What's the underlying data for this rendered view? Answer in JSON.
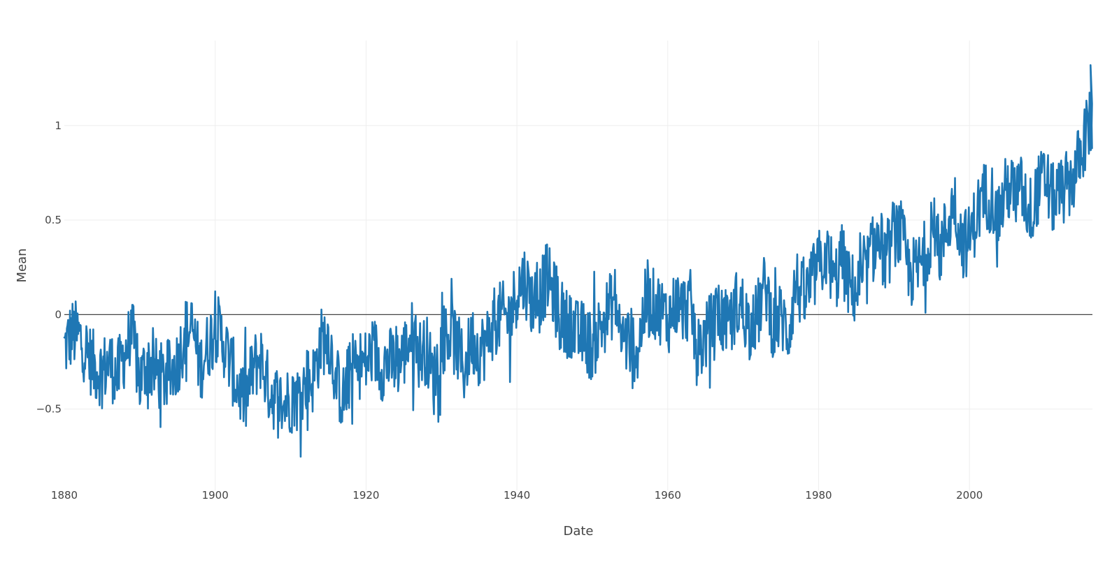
{
  "chart_data": {
    "type": "line",
    "title": "",
    "xlabel": "Date",
    "ylabel": "Mean",
    "x_ticks": [
      "1880",
      "1900",
      "1920",
      "1940",
      "1960",
      "1980",
      "2000"
    ],
    "y_ticks": [
      "−0.5",
      "0",
      "0.5",
      "1"
    ],
    "xlim": [
      1880,
      2016.3
    ],
    "ylim": [
      -0.93,
      1.45
    ],
    "grid": true,
    "zero_line": true,
    "colors": {
      "series": "#1f77b4",
      "grid": "#eeeeee",
      "zero_line": "#444444"
    },
    "series": [
      {
        "x": [
          1880.0,
          1881.0,
          1882.0,
          1883.0,
          1884.0,
          1885.0,
          1886.0,
          1887.0,
          1888.0,
          1889.0,
          1890.0,
          1891.0,
          1892.0,
          1893.0,
          1894.0,
          1895.0,
          1896.0,
          1897.0,
          1898.0,
          1899.0,
          1900.0,
          1901.0,
          1902.0,
          1903.0,
          1904.0,
          1905.0,
          1906.0,
          1907.0,
          1908.0,
          1909.0,
          1910.0,
          1911.0,
          1912.0,
          1913.0,
          1914.0,
          1915.0,
          1916.0,
          1917.0,
          1918.0,
          1919.0,
          1920.0,
          1921.0,
          1922.0,
          1923.0,
          1924.0,
          1925.0,
          1926.0,
          1927.0,
          1928.0,
          1929.0,
          1930.0,
          1931.0,
          1932.0,
          1933.0,
          1934.0,
          1935.0,
          1936.0,
          1937.0,
          1938.0,
          1939.0,
          1940.0,
          1941.0,
          1942.0,
          1943.0,
          1944.0,
          1945.0,
          1946.0,
          1947.0,
          1948.0,
          1949.0,
          1950.0,
          1951.0,
          1952.0,
          1953.0,
          1954.0,
          1955.0,
          1956.0,
          1957.0,
          1958.0,
          1959.0,
          1960.0,
          1961.0,
          1962.0,
          1963.0,
          1964.0,
          1965.0,
          1966.0,
          1967.0,
          1968.0,
          1969.0,
          1970.0,
          1971.0,
          1972.0,
          1973.0,
          1974.0,
          1975.0,
          1976.0,
          1977.0,
          1978.0,
          1979.0,
          1980.0,
          1981.0,
          1982.0,
          1983.0,
          1984.0,
          1985.0,
          1986.0,
          1987.0,
          1988.0,
          1989.0,
          1990.0,
          1991.0,
          1992.0,
          1993.0,
          1994.0,
          1995.0,
          1996.0,
          1997.0,
          1998.0,
          1999.0,
          2000.0,
          2001.0,
          2002.0,
          2003.0,
          2004.0,
          2005.0,
          2006.0,
          2007.0,
          2008.0,
          2009.0,
          2010.0,
          2011.0,
          2012.0,
          2013.0,
          2014.0,
          2015.0,
          2016.0
        ],
        "y": [
          -0.18,
          -0.1,
          -0.12,
          -0.2,
          -0.28,
          -0.3,
          -0.25,
          -0.33,
          -0.2,
          -0.1,
          -0.36,
          -0.25,
          -0.3,
          -0.34,
          -0.32,
          -0.25,
          -0.1,
          -0.08,
          -0.28,
          -0.17,
          -0.06,
          -0.13,
          -0.26,
          -0.38,
          -0.46,
          -0.29,
          -0.22,
          -0.38,
          -0.44,
          -0.48,
          -0.44,
          -0.44,
          -0.35,
          -0.34,
          -0.15,
          -0.11,
          -0.34,
          -0.45,
          -0.29,
          -0.26,
          -0.26,
          -0.18,
          -0.27,
          -0.25,
          -0.26,
          -0.21,
          -0.1,
          -0.21,
          -0.18,
          -0.35,
          -0.14,
          -0.09,
          -0.16,
          -0.29,
          -0.13,
          -0.19,
          -0.15,
          -0.03,
          -0.01,
          -0.02,
          0.13,
          0.19,
          0.07,
          0.09,
          0.2,
          0.09,
          -0.07,
          -0.03,
          -0.11,
          -0.11,
          -0.18,
          -0.07,
          0.01,
          0.08,
          -0.13,
          -0.14,
          -0.19,
          0.05,
          0.06,
          0.03,
          -0.03,
          0.06,
          0.03,
          0.05,
          -0.2,
          -0.11,
          -0.06,
          -0.02,
          -0.08,
          0.05,
          0.03,
          -0.08,
          0.01,
          0.16,
          -0.07,
          -0.01,
          -0.1,
          0.18,
          0.07,
          0.16,
          0.26,
          0.32,
          0.14,
          0.31,
          0.16,
          0.12,
          0.18,
          0.33,
          0.4,
          0.27,
          0.45,
          0.41,
          0.22,
          0.23,
          0.31,
          0.45,
          0.33,
          0.46,
          0.61,
          0.38,
          0.39,
          0.54,
          0.63,
          0.62,
          0.53,
          0.68,
          0.64,
          0.66,
          0.54,
          0.65,
          0.72,
          0.61,
          0.64,
          0.68,
          0.74,
          0.9,
          1.01
        ]
      }
    ]
  }
}
